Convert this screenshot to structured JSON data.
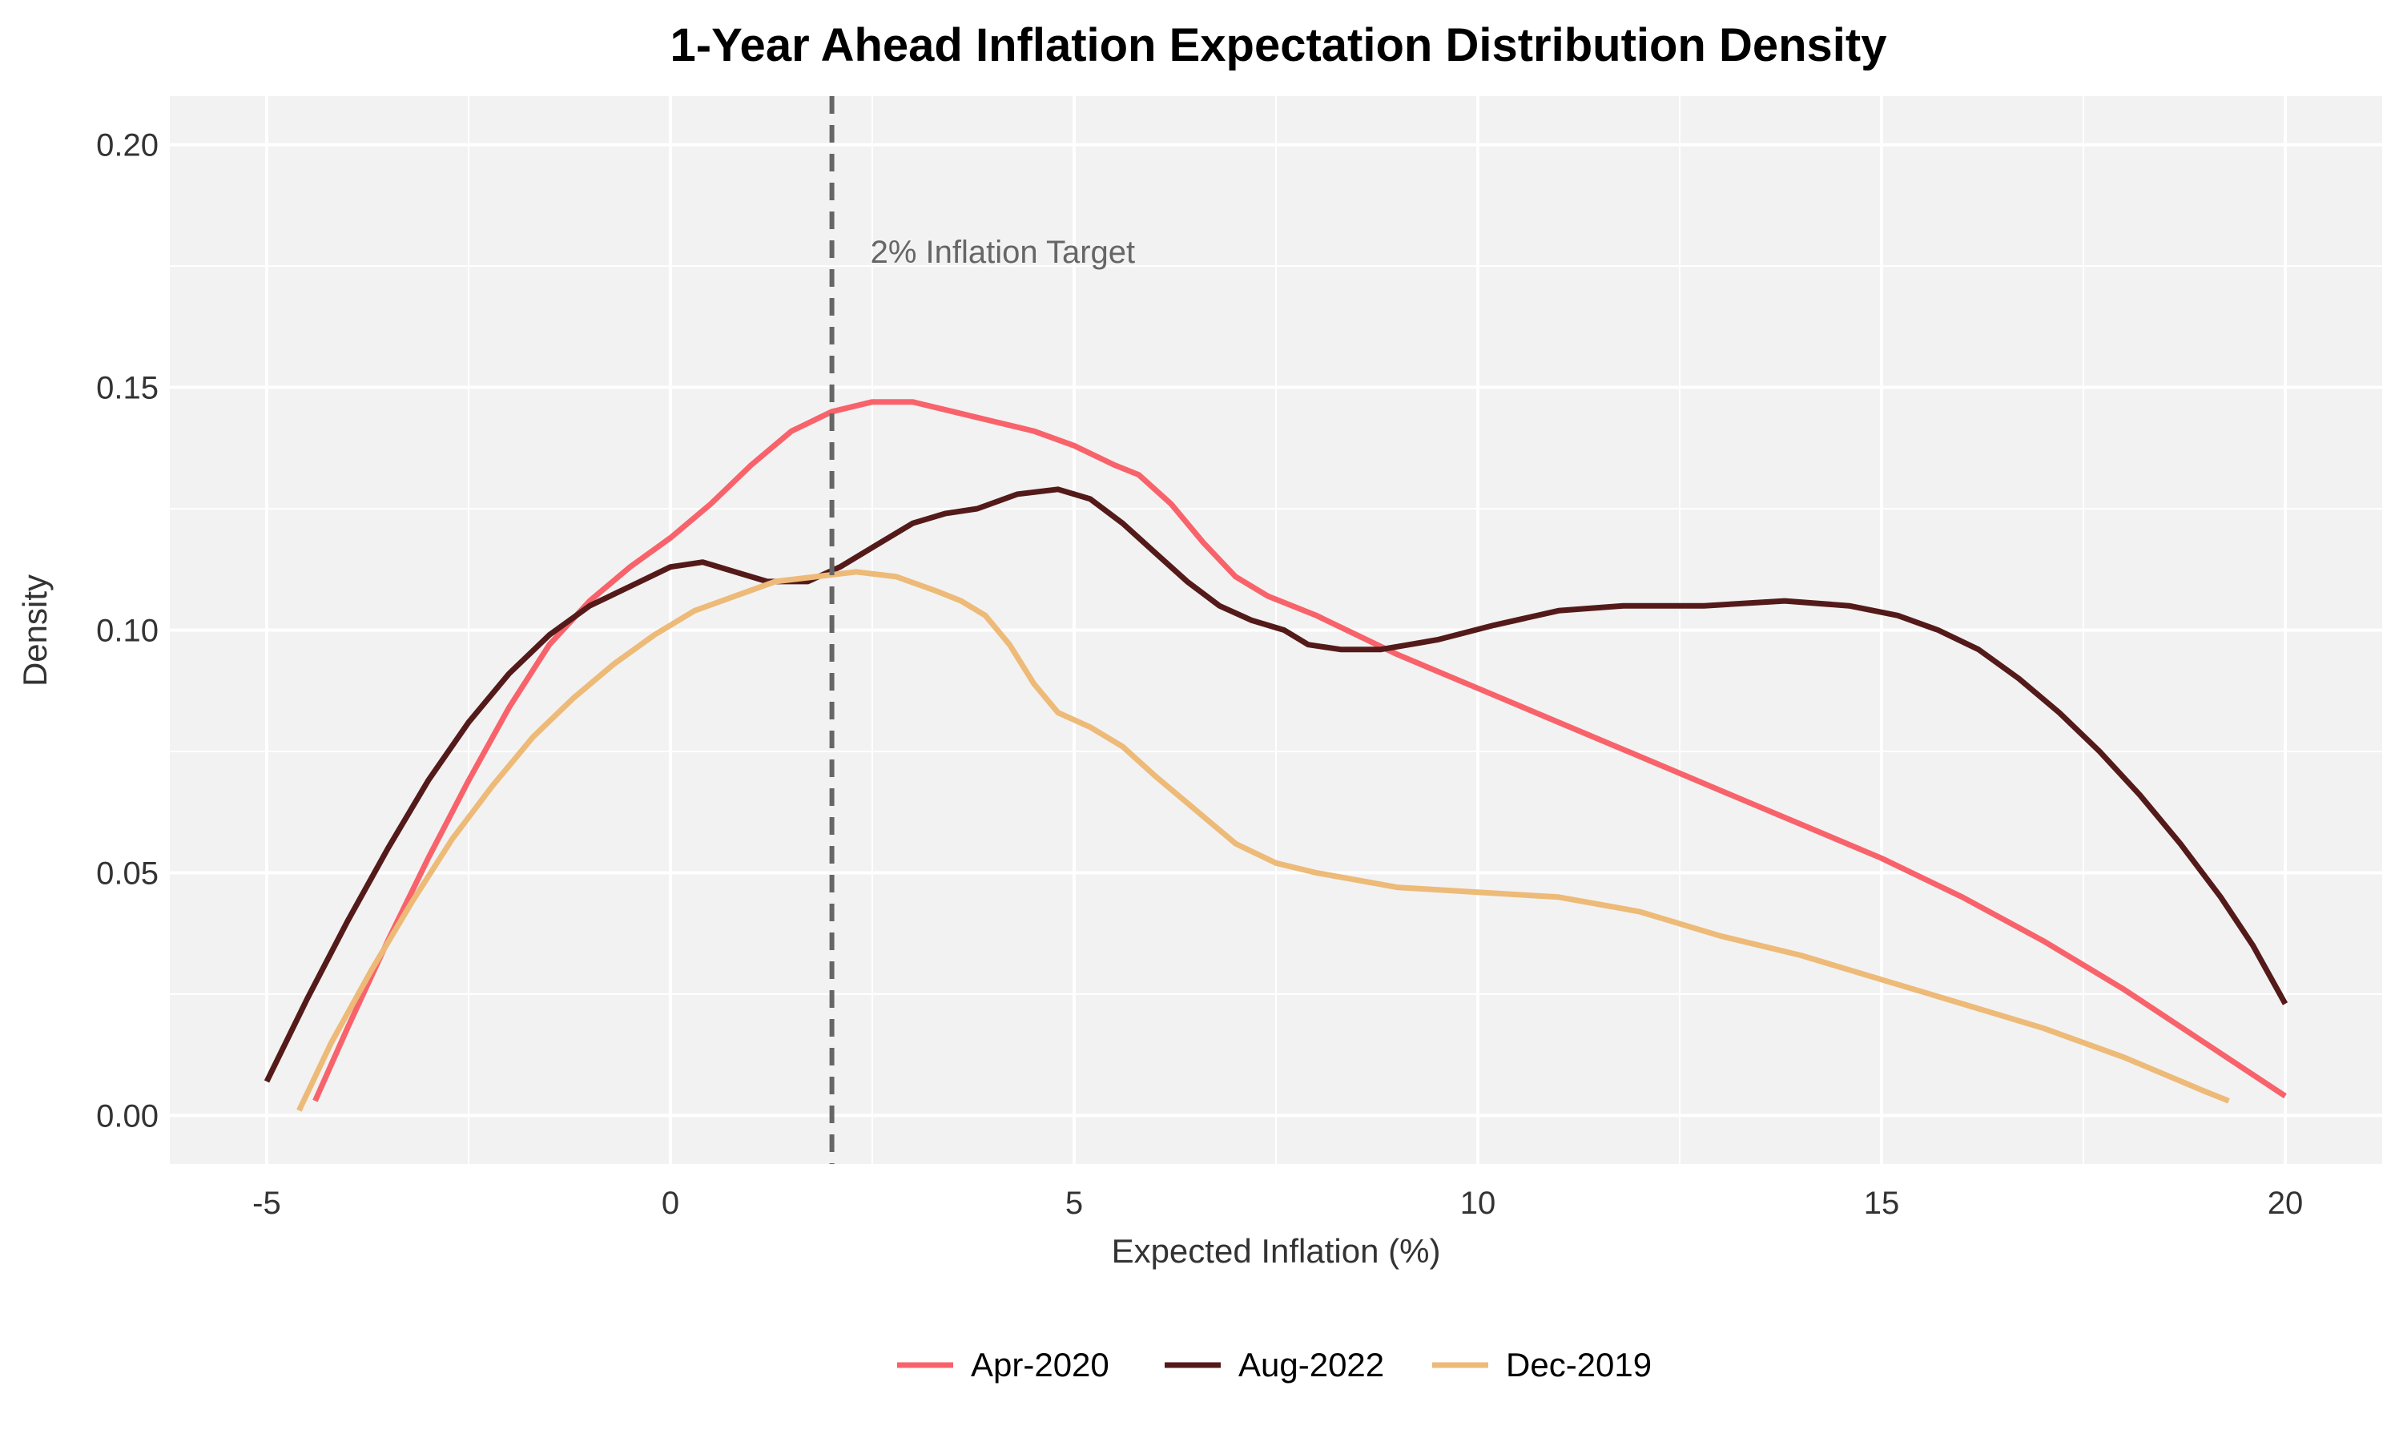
{
  "chart_data": {
    "type": "line",
    "title": "1-Year Ahead Inflation Expectation Distribution Density",
    "xlabel": "Expected Inflation (%)",
    "ylabel": "Density",
    "xlim": [
      -6.2,
      21.2
    ],
    "ylim": [
      -0.01,
      0.21
    ],
    "x_ticks": [
      -5,
      0,
      5,
      10,
      15,
      20
    ],
    "x_tick_labels": [
      "-5",
      "0",
      "5",
      "10",
      "15",
      "20"
    ],
    "y_ticks": [
      0.0,
      0.05,
      0.1,
      0.15,
      0.2
    ],
    "y_tick_labels": [
      "0.00",
      "0.05",
      "0.10",
      "0.15",
      "0.20"
    ],
    "grid": true,
    "legend_position": "bottom",
    "reference_line": {
      "x": 2,
      "style": "dashed",
      "color": "#666666",
      "label": "2% Inflation Target",
      "label_y": 0.178
    },
    "series": [
      {
        "name": "Apr-2020",
        "color": "#F8636B",
        "points": [
          [
            -4.4,
            0.003
          ],
          [
            -4.0,
            0.018
          ],
          [
            -3.5,
            0.036
          ],
          [
            -3.0,
            0.053
          ],
          [
            -2.5,
            0.069
          ],
          [
            -2.0,
            0.084
          ],
          [
            -1.5,
            0.097
          ],
          [
            -1.0,
            0.106
          ],
          [
            -0.5,
            0.113
          ],
          [
            0.0,
            0.119
          ],
          [
            0.5,
            0.126
          ],
          [
            1.0,
            0.134
          ],
          [
            1.5,
            0.141
          ],
          [
            2.0,
            0.145
          ],
          [
            2.5,
            0.147
          ],
          [
            3.0,
            0.147
          ],
          [
            3.5,
            0.145
          ],
          [
            4.0,
            0.143
          ],
          [
            4.5,
            0.141
          ],
          [
            5.0,
            0.138
          ],
          [
            5.5,
            0.134
          ],
          [
            5.8,
            0.132
          ],
          [
            6.2,
            0.126
          ],
          [
            6.6,
            0.118
          ],
          [
            7.0,
            0.111
          ],
          [
            7.4,
            0.107
          ],
          [
            8.0,
            0.103
          ],
          [
            9.0,
            0.095
          ],
          [
            10.0,
            0.088
          ],
          [
            11.0,
            0.081
          ],
          [
            12.0,
            0.074
          ],
          [
            13.0,
            0.067
          ],
          [
            14.0,
            0.06
          ],
          [
            15.0,
            0.053
          ],
          [
            16.0,
            0.045
          ],
          [
            17.0,
            0.036
          ],
          [
            18.0,
            0.026
          ],
          [
            19.0,
            0.015
          ],
          [
            20.0,
            0.004
          ]
        ]
      },
      {
        "name": "Aug-2022",
        "color": "#541A1A",
        "points": [
          [
            -5.0,
            0.007
          ],
          [
            -4.5,
            0.024
          ],
          [
            -4.0,
            0.04
          ],
          [
            -3.5,
            0.055
          ],
          [
            -3.0,
            0.069
          ],
          [
            -2.5,
            0.081
          ],
          [
            -2.0,
            0.091
          ],
          [
            -1.5,
            0.099
          ],
          [
            -1.0,
            0.105
          ],
          [
            -0.5,
            0.109
          ],
          [
            0.0,
            0.113
          ],
          [
            0.4,
            0.114
          ],
          [
            0.8,
            0.112
          ],
          [
            1.2,
            0.11
          ],
          [
            1.7,
            0.11
          ],
          [
            2.1,
            0.113
          ],
          [
            2.6,
            0.118
          ],
          [
            3.0,
            0.122
          ],
          [
            3.4,
            0.124
          ],
          [
            3.8,
            0.125
          ],
          [
            4.3,
            0.128
          ],
          [
            4.8,
            0.129
          ],
          [
            5.2,
            0.127
          ],
          [
            5.6,
            0.122
          ],
          [
            6.0,
            0.116
          ],
          [
            6.4,
            0.11
          ],
          [
            6.8,
            0.105
          ],
          [
            7.2,
            0.102
          ],
          [
            7.6,
            0.1
          ],
          [
            7.9,
            0.097
          ],
          [
            8.3,
            0.096
          ],
          [
            8.8,
            0.096
          ],
          [
            9.5,
            0.098
          ],
          [
            10.2,
            0.101
          ],
          [
            11.0,
            0.104
          ],
          [
            11.8,
            0.105
          ],
          [
            12.8,
            0.105
          ],
          [
            13.8,
            0.106
          ],
          [
            14.6,
            0.105
          ],
          [
            15.2,
            0.103
          ],
          [
            15.7,
            0.1
          ],
          [
            16.2,
            0.096
          ],
          [
            16.7,
            0.09
          ],
          [
            17.2,
            0.083
          ],
          [
            17.7,
            0.075
          ],
          [
            18.2,
            0.066
          ],
          [
            18.7,
            0.056
          ],
          [
            19.2,
            0.045
          ],
          [
            19.6,
            0.035
          ],
          [
            20.0,
            0.023
          ]
        ]
      },
      {
        "name": "Dec-2019",
        "color": "#EDBA78",
        "points": [
          [
            -4.6,
            0.001
          ],
          [
            -4.2,
            0.015
          ],
          [
            -3.7,
            0.03
          ],
          [
            -3.2,
            0.044
          ],
          [
            -2.7,
            0.057
          ],
          [
            -2.2,
            0.068
          ],
          [
            -1.7,
            0.078
          ],
          [
            -1.2,
            0.086
          ],
          [
            -0.7,
            0.093
          ],
          [
            -0.2,
            0.099
          ],
          [
            0.3,
            0.104
          ],
          [
            0.8,
            0.107
          ],
          [
            1.3,
            0.11
          ],
          [
            1.8,
            0.111
          ],
          [
            2.3,
            0.112
          ],
          [
            2.8,
            0.111
          ],
          [
            3.3,
            0.108
          ],
          [
            3.6,
            0.106
          ],
          [
            3.9,
            0.103
          ],
          [
            4.2,
            0.097
          ],
          [
            4.5,
            0.089
          ],
          [
            4.8,
            0.083
          ],
          [
            5.2,
            0.08
          ],
          [
            5.6,
            0.076
          ],
          [
            6.0,
            0.07
          ],
          [
            6.5,
            0.063
          ],
          [
            7.0,
            0.056
          ],
          [
            7.5,
            0.052
          ],
          [
            8.0,
            0.05
          ],
          [
            9.0,
            0.047
          ],
          [
            10.0,
            0.046
          ],
          [
            11.0,
            0.045
          ],
          [
            12.0,
            0.042
          ],
          [
            13.0,
            0.037
          ],
          [
            14.0,
            0.033
          ],
          [
            15.0,
            0.028
          ],
          [
            16.0,
            0.023
          ],
          [
            17.0,
            0.018
          ],
          [
            18.0,
            0.012
          ],
          [
            19.0,
            0.005
          ],
          [
            19.3,
            0.003
          ]
        ]
      }
    ]
  }
}
